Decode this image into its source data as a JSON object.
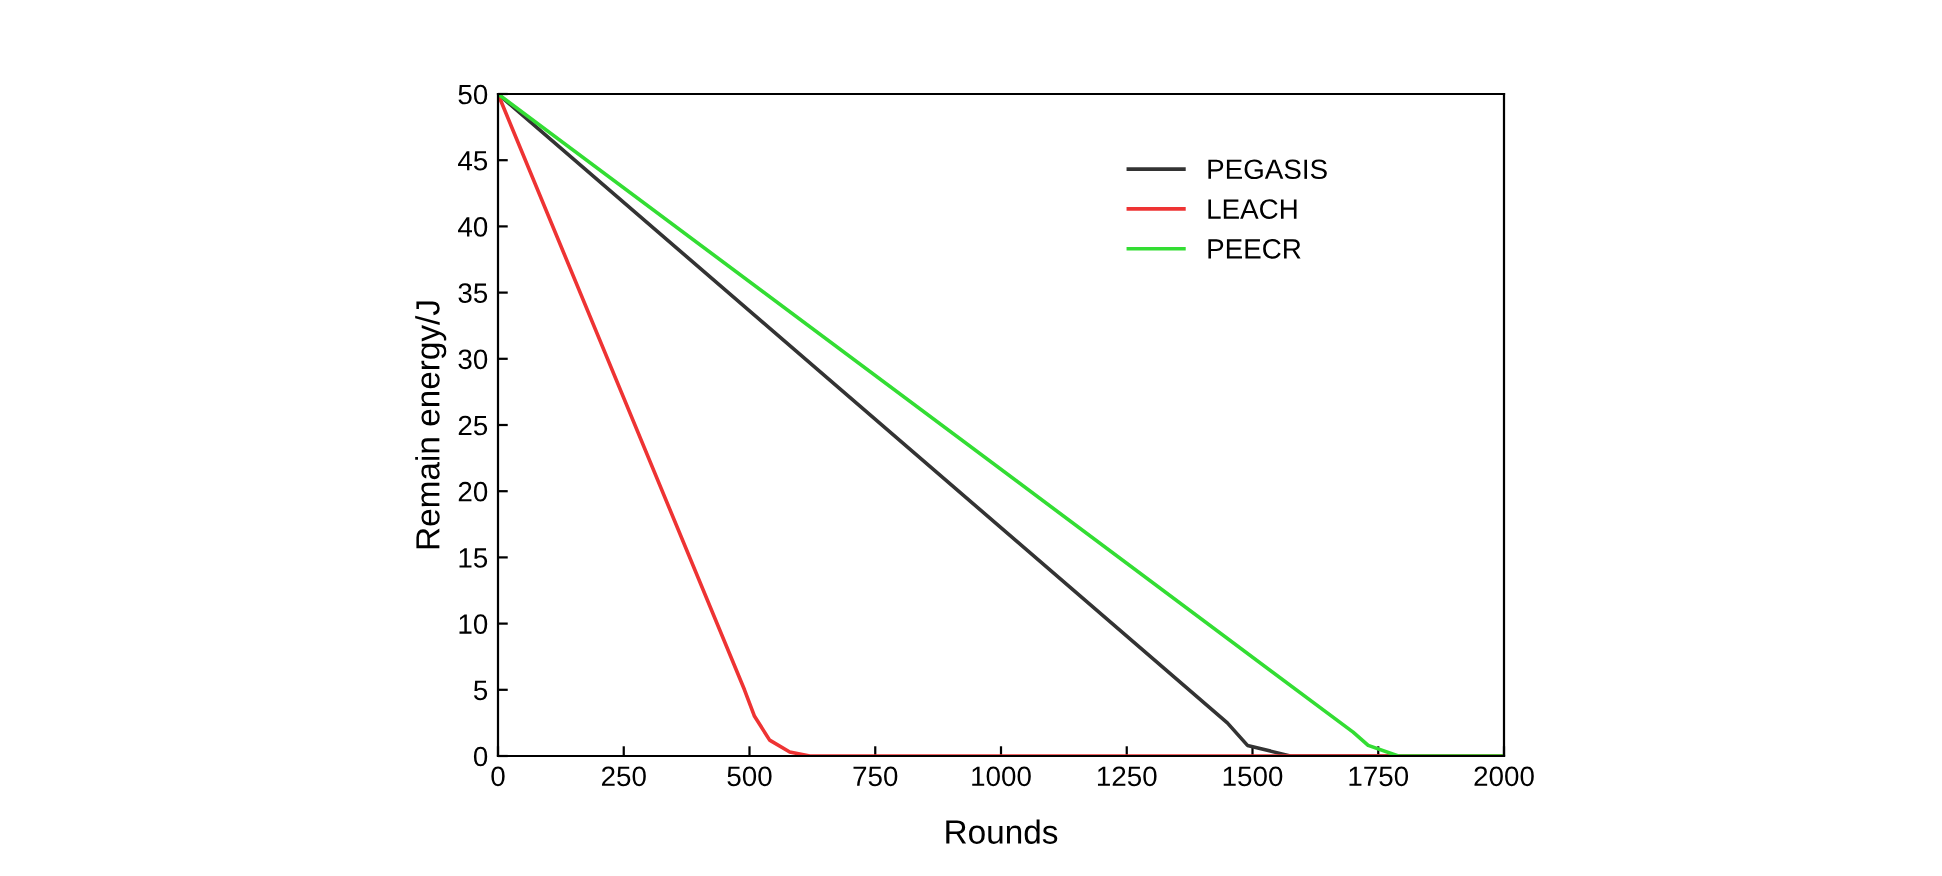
{
  "chart_data": {
    "type": "line",
    "xlabel": "Rounds",
    "ylabel": "Remain energy/J",
    "xlim": [
      0,
      2000
    ],
    "ylim": [
      0,
      50
    ],
    "xticks": [
      0,
      250,
      500,
      750,
      1000,
      1250,
      1500,
      1750,
      2000
    ],
    "yticks": [
      0,
      5,
      10,
      15,
      20,
      25,
      30,
      35,
      40,
      45,
      50
    ],
    "grid": false,
    "legend": "top right",
    "marker": "none",
    "line_style": "solid",
    "series": [
      {
        "name": "PEGASIS",
        "color": "#333333",
        "x": [
          0,
          1450,
          1490,
          1575,
          2000
        ],
        "values": [
          50,
          2.5,
          0.8,
          0,
          0
        ]
      },
      {
        "name": "LEACH",
        "color": "#ee3333",
        "x": [
          0,
          490,
          510,
          540,
          580,
          620,
          2000
        ],
        "values": [
          50,
          5,
          3,
          1.2,
          0.3,
          0,
          0
        ]
      },
      {
        "name": "PEECR",
        "color": "#33dd33",
        "x": [
          0,
          1700,
          1730,
          1790,
          2000
        ],
        "values": [
          50,
          1.8,
          0.8,
          0,
          0
        ]
      }
    ]
  }
}
